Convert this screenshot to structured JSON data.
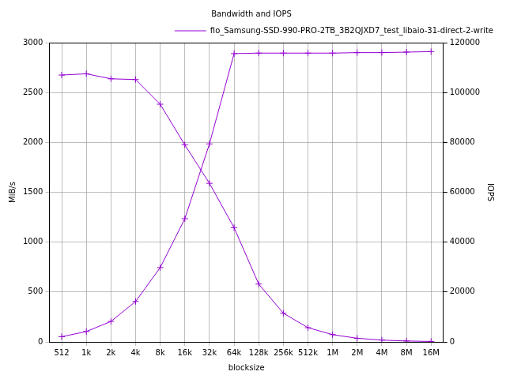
{
  "chart_data": {
    "type": "line",
    "title": "Bandwidth and IOPS",
    "x_label": "blocksize",
    "y_label": "MiB/s",
    "y2_label": "IOPS",
    "categories": [
      "512",
      "1k",
      "2k",
      "4k",
      "8k",
      "16k",
      "32k",
      "64k",
      "128k",
      "256k",
      "512k",
      "1M",
      "2M",
      "4M",
      "8M",
      "16M"
    ],
    "series": [
      {
        "name": "fio_Samsung-SSD-990-PRO-2TB_3B2QJXD7_test_libaio-31-direct-2-write",
        "color": "#9400d3",
        "marker": "plus",
        "line_style": "solid",
        "values": [
          52,
          104,
          205,
          405,
          745,
          1235,
          1985,
          2890,
          2895,
          2895,
          2895,
          2895,
          2900,
          2900,
          2905,
          2910
        ]
      },
      {
        "color": "#9400d3",
        "marker": "plus",
        "line_style": "solid",
        "axis": "y2",
        "values": [
          107000,
          107500,
          105500,
          105200,
          95300,
          79000,
          63600,
          45800,
          23200,
          11500,
          5700,
          2900,
          1450,
          720,
          360,
          180
        ]
      }
    ],
    "ylim": [
      0,
      3000
    ],
    "yticks": [
      0,
      500,
      1000,
      1500,
      2000,
      2500,
      3000
    ],
    "y2lim": [
      0,
      120000
    ],
    "y2ticks": [
      0,
      20000,
      40000,
      60000,
      80000,
      100000,
      120000
    ],
    "grid": true,
    "legend": "upper right"
  }
}
